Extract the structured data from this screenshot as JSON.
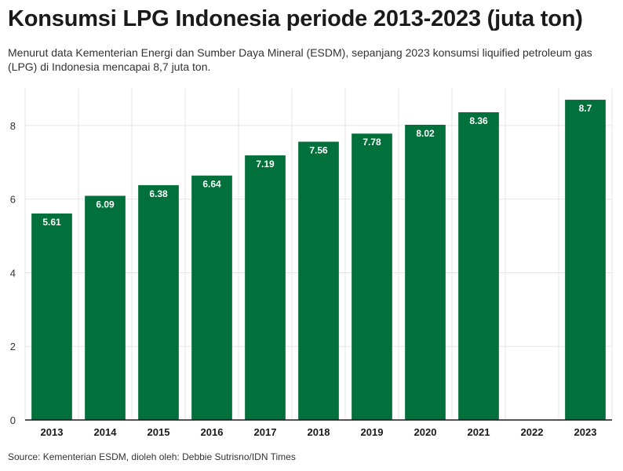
{
  "header": {
    "title": "Konsumsi LPG Indonesia periode 2013-2023 (juta ton)",
    "subtitle": "Menurut data Kementerian Energi dan Sumber Daya Mineral (ESDM), sepanjang 2023 konsumsi liquified petroleum gas (LPG) di Indonesia mencapai 8,7 juta ton."
  },
  "footer": {
    "source": "Source: Kementerian ESDM, dioleh oleh: Debbie Sutrisno/IDN Times"
  },
  "chart_data": {
    "type": "bar",
    "title": "Konsumsi LPG Indonesia periode 2013-2023 (juta ton)",
    "categories": [
      "2013",
      "2014",
      "2015",
      "2016",
      "2017",
      "2018",
      "2019",
      "2020",
      "2021",
      "2022",
      "2023"
    ],
    "values": [
      5.61,
      6.09,
      6.38,
      6.64,
      7.19,
      7.56,
      7.78,
      8.02,
      8.36,
      null,
      8.7
    ],
    "data_labels": [
      "5.61",
      "6.09",
      "6.38",
      "6.64",
      "7.19",
      "7.56",
      "7.78",
      "8.02",
      "8.36",
      "",
      "8.7"
    ],
    "xlabel": "",
    "ylabel": "",
    "ylim": [
      0,
      9
    ],
    "yticks": [
      0,
      2,
      4,
      6,
      8
    ],
    "grid": true,
    "bar_color": "#02703a",
    "grid_color": "#e6e6e6",
    "axis_color": "#1a1a1a"
  }
}
